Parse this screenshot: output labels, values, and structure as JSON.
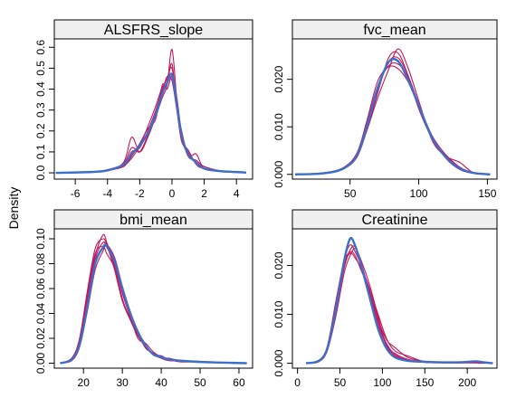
{
  "figure": {
    "ylabel": "Density",
    "colors": {
      "observed": "#3b6fc9",
      "imputed": "#c0185a",
      "strip": "#f0f0f0"
    }
  },
  "chart_data": [
    {
      "type": "line",
      "title": "ALSFRS_slope",
      "xlim": [
        -7.3,
        5.0
      ],
      "ylim": [
        -0.03,
        0.64
      ],
      "xticks": [
        -6,
        -4,
        -2,
        0,
        2,
        4
      ],
      "yticks": [
        0.0,
        0.1,
        0.2,
        0.3,
        0.4,
        0.5,
        0.6
      ],
      "ytick_labels": [
        "0.0",
        "0.1",
        "0.2",
        "0.3",
        "0.4",
        "0.5",
        "0.6"
      ],
      "series": [
        {
          "role": "observed",
          "x": [
            -7.2,
            -5,
            -4,
            -3,
            -2.5,
            -2,
            -1.5,
            -1,
            -0.6,
            -0.3,
            0,
            0.3,
            0.6,
            1,
            1.5,
            2,
            3,
            4,
            4.6
          ],
          "y": [
            0,
            0.004,
            0.012,
            0.04,
            0.09,
            0.13,
            0.19,
            0.28,
            0.38,
            0.43,
            0.47,
            0.33,
            0.18,
            0.09,
            0.05,
            0.02,
            0.008,
            0.004,
            0.001
          ]
        },
        {
          "role": "imputed",
          "x": [
            -7.2,
            -5,
            -4,
            -3,
            -2.5,
            -2,
            -1.5,
            -1,
            -0.6,
            -0.3,
            0,
            0.3,
            0.6,
            1,
            1.5,
            2,
            3,
            4,
            4.6
          ],
          "y": [
            0,
            0.004,
            0.013,
            0.04,
            0.1,
            0.12,
            0.2,
            0.3,
            0.4,
            0.45,
            0.5,
            0.32,
            0.16,
            0.09,
            0.05,
            0.02,
            0.007,
            0.003,
            0
          ]
        },
        {
          "role": "imputed",
          "x": [
            -7.2,
            -5,
            -4,
            -3,
            -2.5,
            -2,
            -1.5,
            -1,
            -0.6,
            -0.3,
            0,
            0.3,
            0.6,
            1,
            1.5,
            2,
            3,
            4,
            4.6
          ],
          "y": [
            0,
            0.005,
            0.01,
            0.05,
            0.17,
            0.1,
            0.17,
            0.27,
            0.36,
            0.42,
            0.59,
            0.35,
            0.17,
            0.1,
            0.05,
            0.03,
            0.008,
            0.003,
            0
          ]
        },
        {
          "role": "imputed",
          "x": [
            -7.2,
            -5,
            -4,
            -3,
            -2.5,
            -2,
            -1.5,
            -1,
            -0.6,
            -0.3,
            0,
            0.3,
            0.6,
            1,
            1.5,
            2,
            3,
            4,
            4.6
          ],
          "y": [
            0,
            0.003,
            0.012,
            0.03,
            0.08,
            0.14,
            0.21,
            0.26,
            0.42,
            0.4,
            0.46,
            0.36,
            0.19,
            0.08,
            0.09,
            0.02,
            0.009,
            0.005,
            0
          ]
        },
        {
          "role": "imputed",
          "x": [
            -7.2,
            -5,
            -4,
            -3,
            -2.5,
            -2,
            -1.5,
            -1,
            -0.6,
            -0.3,
            0,
            0.3,
            0.6,
            1,
            1.5,
            2,
            3,
            4,
            4.6
          ],
          "y": [
            0,
            0.004,
            0.015,
            0.045,
            0.12,
            0.1,
            0.18,
            0.29,
            0.39,
            0.46,
            0.44,
            0.3,
            0.15,
            0.11,
            0.04,
            0.02,
            0.006,
            0.002,
            0
          ]
        },
        {
          "role": "imputed",
          "x": [
            -7.2,
            -5,
            -4,
            -3,
            -2.5,
            -2,
            -1.5,
            -1,
            -0.6,
            -0.3,
            0,
            0.3,
            0.6,
            1,
            1.5,
            2,
            3,
            4,
            4.6
          ],
          "y": [
            0,
            0.002,
            0.01,
            0.035,
            0.07,
            0.13,
            0.22,
            0.32,
            0.41,
            0.43,
            0.52,
            0.31,
            0.2,
            0.08,
            0.06,
            0.03,
            0.01,
            0.004,
            0
          ]
        }
      ]
    },
    {
      "type": "line",
      "title": "fvc_mean",
      "xlim": [
        8,
        157
      ],
      "ylim": [
        -0.001,
        0.0285
      ],
      "xticks": [
        50,
        100,
        150
      ],
      "yticks": [
        0.0,
        0.01,
        0.02
      ],
      "ytick_labels": [
        "0.000",
        "0.010",
        "0.020"
      ],
      "series": [
        {
          "role": "observed",
          "x": [
            10,
            30,
            45,
            55,
            62,
            70,
            78,
            85,
            92,
            100,
            110,
            120,
            130,
            140,
            152
          ],
          "y": [
            0,
            0.0002,
            0.0012,
            0.004,
            0.0098,
            0.018,
            0.0236,
            0.0238,
            0.02,
            0.0145,
            0.0075,
            0.0035,
            0.0012,
            0.0003,
            0
          ]
        },
        {
          "role": "imputed",
          "x": [
            10,
            30,
            45,
            55,
            62,
            70,
            78,
            85,
            92,
            100,
            110,
            120,
            130,
            140,
            152
          ],
          "y": [
            0,
            0.0002,
            0.0011,
            0.0038,
            0.0092,
            0.017,
            0.0245,
            0.0255,
            0.021,
            0.0148,
            0.0072,
            0.004,
            0.0015,
            0.0003,
            0
          ]
        },
        {
          "role": "imputed",
          "x": [
            10,
            30,
            45,
            55,
            62,
            70,
            78,
            85,
            92,
            100,
            110,
            120,
            130,
            140,
            152
          ],
          "y": [
            0,
            0.0003,
            0.0013,
            0.0042,
            0.0105,
            0.0185,
            0.0228,
            0.0232,
            0.0205,
            0.0142,
            0.0078,
            0.0033,
            0.001,
            0.0002,
            0
          ]
        },
        {
          "role": "imputed",
          "x": [
            10,
            30,
            45,
            55,
            62,
            70,
            78,
            85,
            92,
            100,
            110,
            120,
            130,
            140,
            152
          ],
          "y": [
            0,
            0.0002,
            0.0011,
            0.0036,
            0.009,
            0.016,
            0.022,
            0.0264,
            0.0226,
            0.0155,
            0.007,
            0.0038,
            0.0025,
            0.0003,
            0
          ]
        },
        {
          "role": "imputed",
          "x": [
            10,
            30,
            45,
            55,
            62,
            70,
            78,
            85,
            92,
            100,
            110,
            120,
            130,
            140,
            152
          ],
          "y": [
            0,
            0.0003,
            0.0014,
            0.0045,
            0.011,
            0.0195,
            0.0226,
            0.0222,
            0.0196,
            0.0146,
            0.008,
            0.004,
            0.0012,
            0.0004,
            0
          ]
        },
        {
          "role": "imputed",
          "x": [
            10,
            30,
            45,
            55,
            62,
            70,
            78,
            85,
            92,
            100,
            110,
            120,
            130,
            140,
            152
          ],
          "y": [
            0,
            0.0002,
            0.0012,
            0.004,
            0.0095,
            0.0175,
            0.0236,
            0.0245,
            0.0208,
            0.0138,
            0.0074,
            0.0037,
            0.0014,
            0.0002,
            0
          ]
        }
      ]
    },
    {
      "type": "line",
      "title": "bmi_mean",
      "xlim": [
        12.5,
        63.5
      ],
      "ylim": [
        -0.004,
        0.108
      ],
      "xticks": [
        20,
        30,
        40,
        50,
        60
      ],
      "yticks": [
        0.0,
        0.02,
        0.04,
        0.06,
        0.08,
        0.1
      ],
      "ytick_labels": [
        "0.00",
        "0.02",
        "0.04",
        "0.06",
        "0.08",
        "0.10"
      ],
      "series": [
        {
          "role": "observed",
          "x": [
            14,
            17,
            19,
            21,
            23,
            25,
            26,
            28,
            30,
            32,
            34,
            36,
            38,
            40,
            42,
            45,
            50,
            55,
            62
          ],
          "y": [
            0,
            0.003,
            0.015,
            0.045,
            0.08,
            0.093,
            0.094,
            0.082,
            0.06,
            0.04,
            0.025,
            0.014,
            0.007,
            0.005,
            0.003,
            0.002,
            0.001,
            0.0005,
            0
          ]
        },
        {
          "role": "imputed",
          "x": [
            14,
            17,
            19,
            21,
            23,
            25,
            26,
            28,
            30,
            32,
            34,
            36,
            38,
            40,
            42,
            45,
            50,
            55,
            62
          ],
          "y": [
            0,
            0.004,
            0.02,
            0.058,
            0.092,
            0.1,
            0.095,
            0.075,
            0.05,
            0.035,
            0.022,
            0.013,
            0.007,
            0.004,
            0.003,
            0.002,
            0.0015,
            0.0005,
            0
          ]
        },
        {
          "role": "imputed",
          "x": [
            14,
            17,
            19,
            21,
            23,
            25,
            26,
            28,
            30,
            32,
            34,
            36,
            38,
            40,
            42,
            45,
            50,
            55,
            62
          ],
          "y": [
            0,
            0.003,
            0.018,
            0.052,
            0.086,
            0.103,
            0.097,
            0.078,
            0.052,
            0.036,
            0.024,
            0.012,
            0.008,
            0.004,
            0.002,
            0.002,
            0.001,
            0.0005,
            0
          ]
        },
        {
          "role": "imputed",
          "x": [
            14,
            17,
            19,
            21,
            23,
            25,
            26,
            28,
            30,
            32,
            34,
            36,
            38,
            40,
            42,
            45,
            50,
            55,
            62
          ],
          "y": [
            0,
            0.002,
            0.013,
            0.042,
            0.075,
            0.09,
            0.095,
            0.085,
            0.062,
            0.042,
            0.026,
            0.015,
            0.007,
            0.006,
            0.003,
            0.002,
            0.001,
            0.0004,
            0
          ]
        },
        {
          "role": "imputed",
          "x": [
            14,
            17,
            19,
            21,
            23,
            25,
            26,
            28,
            30,
            32,
            34,
            36,
            38,
            40,
            42,
            45,
            50,
            55,
            62
          ],
          "y": [
            0,
            0.003,
            0.016,
            0.048,
            0.083,
            0.097,
            0.093,
            0.08,
            0.056,
            0.038,
            0.02,
            0.016,
            0.009,
            0.005,
            0.003,
            0.001,
            0.0012,
            0.0006,
            0
          ]
        },
        {
          "role": "imputed",
          "x": [
            14,
            17,
            19,
            21,
            23,
            25,
            26,
            28,
            30,
            32,
            34,
            36,
            38,
            40,
            42,
            45,
            50,
            55,
            62
          ],
          "y": [
            0,
            0.004,
            0.019,
            0.055,
            0.088,
            0.094,
            0.088,
            0.077,
            0.058,
            0.037,
            0.023,
            0.013,
            0.008,
            0.004,
            0.004,
            0.002,
            0.001,
            0.0005,
            0
          ]
        }
      ]
    },
    {
      "type": "line",
      "title": "Creatinine",
      "xlim": [
        -6,
        235
      ],
      "ylim": [
        -0.001,
        0.0275
      ],
      "xticks": [
        0,
        50,
        100,
        150,
        200
      ],
      "yticks": [
        0.0,
        0.01,
        0.02
      ],
      "ytick_labels": [
        "0.000",
        "0.010",
        "0.020"
      ],
      "series": [
        {
          "role": "observed",
          "x": [
            10,
            25,
            35,
            45,
            55,
            62,
            68,
            75,
            85,
            95,
            105,
            115,
            130,
            150,
            170,
            190,
            210,
            215,
            230
          ],
          "y": [
            0,
            0.0005,
            0.003,
            0.011,
            0.021,
            0.0255,
            0.024,
            0.02,
            0.0135,
            0.007,
            0.003,
            0.0012,
            0.0005,
            0.0003,
            0.0002,
            0.0002,
            0.0004,
            0.0003,
            0
          ]
        },
        {
          "role": "imputed",
          "x": [
            10,
            25,
            35,
            45,
            55,
            62,
            68,
            75,
            85,
            95,
            105,
            115,
            130,
            150,
            170,
            190,
            210,
            215,
            230
          ],
          "y": [
            0,
            0.0004,
            0.0028,
            0.0105,
            0.0195,
            0.0232,
            0.0238,
            0.0205,
            0.0145,
            0.0085,
            0.004,
            0.0018,
            0.0006,
            0.0002,
            0.0001,
            0.0001,
            0.0002,
            0.0001,
            0
          ]
        },
        {
          "role": "imputed",
          "x": [
            10,
            25,
            35,
            45,
            55,
            62,
            68,
            75,
            85,
            95,
            105,
            115,
            130,
            150,
            170,
            190,
            210,
            215,
            230
          ],
          "y": [
            0,
            0.0005,
            0.0032,
            0.012,
            0.0205,
            0.0228,
            0.022,
            0.019,
            0.015,
            0.01,
            0.005,
            0.0025,
            0.0015,
            0.0003,
            0.0002,
            0.0001,
            0.0002,
            0.0001,
            0
          ]
        },
        {
          "role": "imputed",
          "x": [
            10,
            25,
            35,
            45,
            55,
            62,
            68,
            75,
            85,
            95,
            105,
            115,
            130,
            150,
            170,
            190,
            210,
            215,
            230
          ],
          "y": [
            0,
            0.0003,
            0.0025,
            0.0095,
            0.0185,
            0.022,
            0.0235,
            0.021,
            0.016,
            0.0095,
            0.0035,
            0.002,
            0.0008,
            0.0003,
            0.0001,
            0.0001,
            0.0001,
            0.0001,
            0
          ]
        },
        {
          "role": "imputed",
          "x": [
            10,
            25,
            35,
            45,
            55,
            62,
            68,
            75,
            85,
            95,
            105,
            115,
            130,
            150,
            170,
            190,
            210,
            215,
            230
          ],
          "y": [
            0,
            0.0004,
            0.003,
            0.0112,
            0.02,
            0.0225,
            0.0215,
            0.0195,
            0.0152,
            0.009,
            0.0048,
            0.0032,
            0.0012,
            0.0004,
            0.0002,
            0.0001,
            0.0001,
            0.0001,
            0
          ]
        },
        {
          "role": "imputed",
          "x": [
            10,
            25,
            35,
            45,
            55,
            62,
            68,
            75,
            85,
            95,
            105,
            115,
            130,
            150,
            170,
            190,
            210,
            215,
            230
          ],
          "y": [
            0,
            0.0005,
            0.0034,
            0.0125,
            0.0212,
            0.0242,
            0.0228,
            0.02,
            0.014,
            0.0078,
            0.0038,
            0.0015,
            0.0007,
            0.0002,
            0.0001,
            0.0001,
            0.0001,
            0,
            0
          ]
        }
      ]
    }
  ]
}
